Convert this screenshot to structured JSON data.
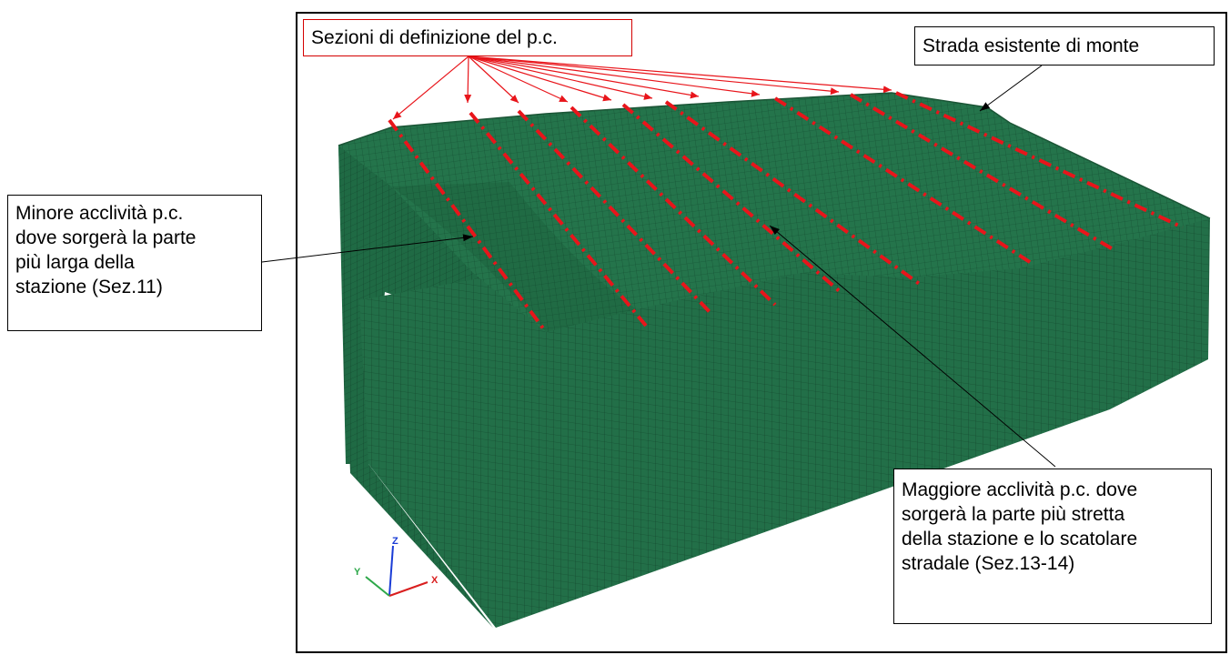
{
  "callouts": {
    "sections": {
      "lines": [
        "Sezioni di definizione del p.c."
      ]
    },
    "road": {
      "lines": [
        "Strada esistente di monte"
      ]
    },
    "minor": {
      "lines": [
        "Minore acclività p.c.",
        "dove sorgerà la parte",
        "più larga della",
        "stazione (Sez.11)"
      ]
    },
    "major": {
      "lines": [
        "Maggiore acclività p.c. dove",
        "sorgerà la parte più stretta",
        "della stazione e lo scatolare",
        "stradale (Sez.13-14)"
      ]
    }
  },
  "axes": {
    "x": "X",
    "y": "Y",
    "z": "Z"
  },
  "colors": {
    "mesh": "#23704a",
    "mesh_dark": "#1a5a3a",
    "section_line": "#e8151b",
    "arrow_red": "#e8151b"
  }
}
